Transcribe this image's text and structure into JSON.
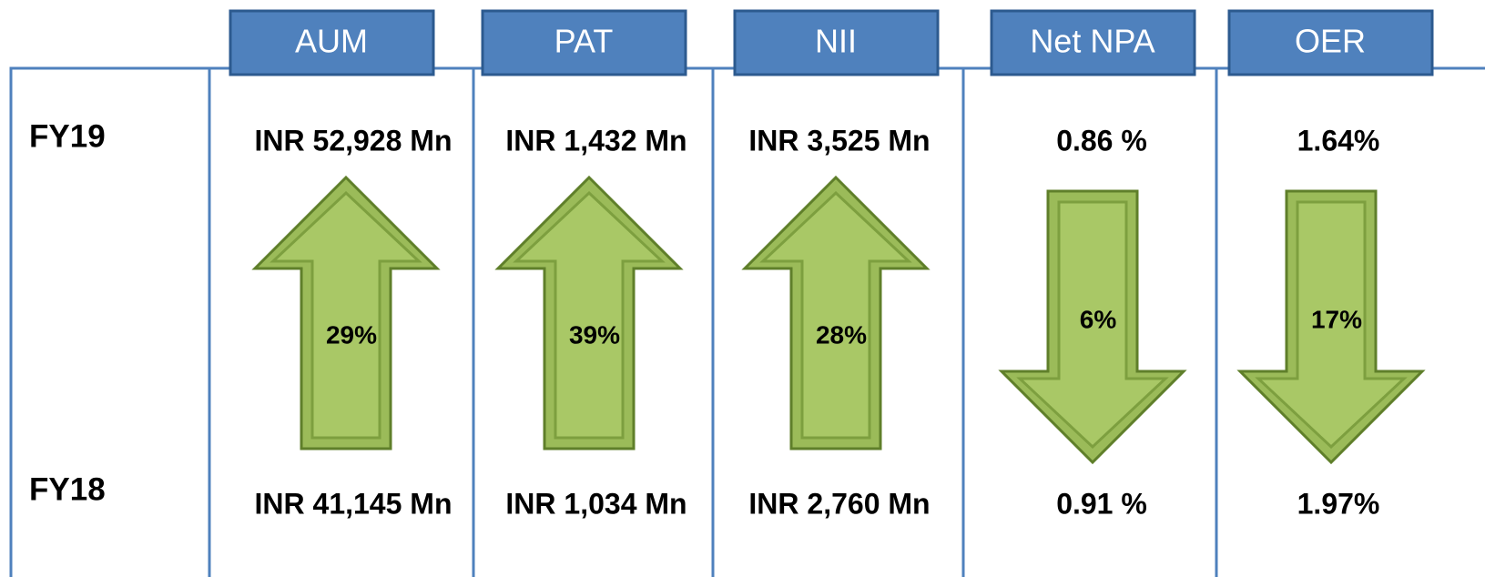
{
  "row_labels": [
    "FY19",
    "FY18"
  ],
  "columns": [
    {
      "header": "AUM",
      "fy19": "INR 52,928 Mn",
      "fy18": "INR 41,145 Mn",
      "change": "29%",
      "direction": "up"
    },
    {
      "header": "PAT",
      "fy19": "INR 1,432 Mn",
      "fy18": "INR 1,034 Mn",
      "change": "39%",
      "direction": "up"
    },
    {
      "header": "NII",
      "fy19": "INR 3,525 Mn",
      "fy18": "INR 2,760 Mn",
      "change": "28%",
      "direction": "up"
    },
    {
      "header": "Net NPA",
      "fy19": "0.86 %",
      "fy18": "0.91 %",
      "change": "6%",
      "direction": "down"
    },
    {
      "header": "OER",
      "fy19": "1.64%",
      "fy18": "1.97%",
      "change": "17%",
      "direction": "down"
    }
  ]
}
